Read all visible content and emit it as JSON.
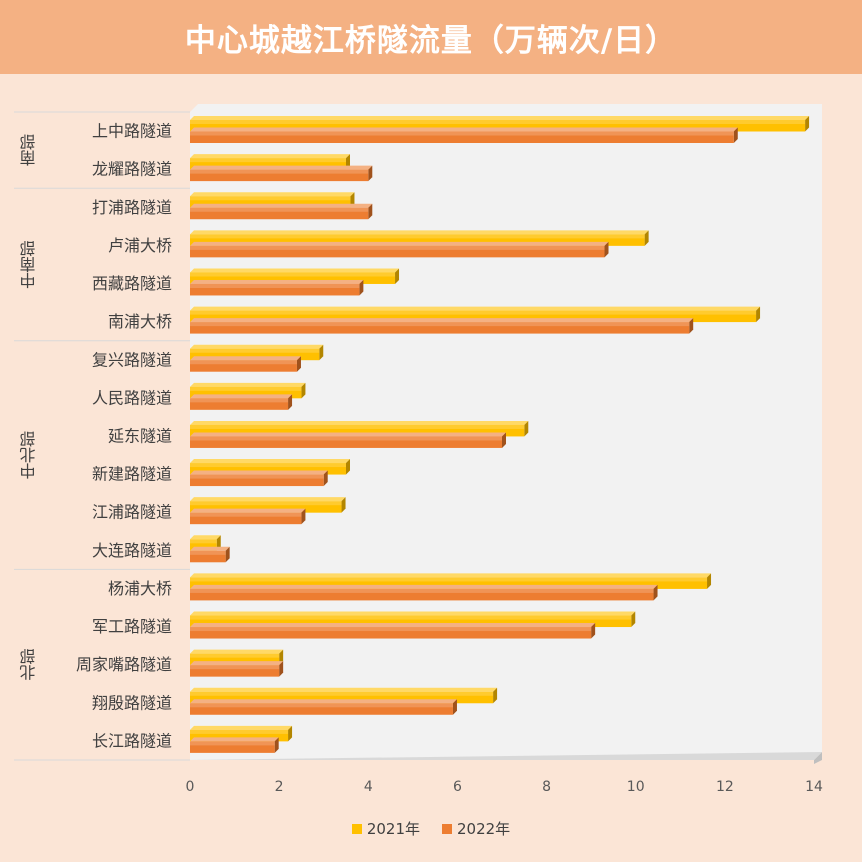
{
  "chart_data": {
    "type": "bar",
    "orientation": "horizontal",
    "title": "中心城越江桥隧流量（万辆次/日）",
    "categories": [
      "上中路隧道",
      "龙耀路隧道",
      "打浦路隧道",
      "卢浦大桥",
      "西藏路隧道",
      "南浦大桥",
      "复兴路隧道",
      "人民路隧道",
      "延东隧道",
      "新建路隧道",
      "江浦路隧道",
      "大连路隧道",
      "杨浦大桥",
      "军工路隧道",
      "周家嘴路隧道",
      "翔殷路隧道",
      "长江路隧道"
    ],
    "groups": [
      {
        "label": "南部",
        "count": 2
      },
      {
        "label": "中南部",
        "count": 4
      },
      {
        "label": "中北部",
        "count": 6
      },
      {
        "label": "北部",
        "count": 5
      }
    ],
    "series": [
      {
        "name": "2021年",
        "color": "#ffc000",
        "values": [
          13.8,
          3.5,
          3.6,
          10.2,
          4.6,
          12.7,
          2.9,
          2.5,
          7.5,
          3.5,
          3.4,
          0.6,
          11.6,
          9.9,
          2.0,
          6.8,
          2.2
        ]
      },
      {
        "name": "2022年",
        "color": "#ed7d31",
        "values": [
          12.2,
          4.0,
          4.0,
          9.3,
          3.8,
          11.2,
          2.4,
          2.2,
          7.0,
          3.0,
          2.5,
          0.8,
          10.4,
          9.0,
          2.0,
          5.9,
          1.9
        ]
      }
    ],
    "xlim": [
      0,
      14
    ],
    "xticks": [
      "0",
      "2",
      "4",
      "6",
      "8",
      "10",
      "12",
      "14"
    ],
    "grid": false,
    "legend_position": "bottom"
  }
}
